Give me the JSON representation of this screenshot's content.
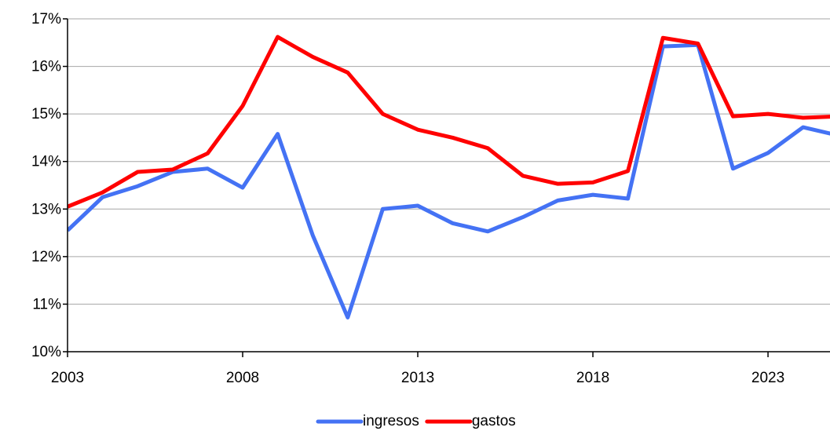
{
  "chart_data": {
    "type": "line",
    "x": [
      2003,
      2004,
      2005,
      2006,
      2007,
      2008,
      2009,
      2010,
      2011,
      2012,
      2013,
      2014,
      2015,
      2016,
      2017,
      2018,
      2019,
      2020,
      2021,
      2022,
      2023,
      2024,
      2025
    ],
    "series": [
      {
        "name": "ingresos",
        "color": "#4472f4",
        "values": [
          12.55,
          13.25,
          13.48,
          13.78,
          13.85,
          13.45,
          14.58,
          12.45,
          10.72,
          13.0,
          13.07,
          12.7,
          12.53,
          12.83,
          13.18,
          13.3,
          13.22,
          16.42,
          16.45,
          13.85,
          14.18,
          14.72,
          14.55
        ]
      },
      {
        "name": "gastos",
        "color": "#ff0000",
        "values": [
          13.05,
          13.35,
          13.78,
          13.83,
          14.17,
          15.17,
          16.62,
          16.2,
          15.87,
          15.0,
          14.67,
          14.5,
          14.28,
          13.7,
          13.53,
          13.56,
          13.8,
          16.6,
          16.48,
          14.95,
          15.0,
          14.92,
          14.95
        ]
      }
    ],
    "xlim": [
      2003,
      2024.77
    ],
    "xticks": [
      2003,
      2008,
      2013,
      2018,
      2023
    ],
    "ylim": [
      10,
      17
    ],
    "yticks": [
      {
        "value": 10,
        "label": "10%"
      },
      {
        "value": 11,
        "label": "11%"
      },
      {
        "value": 12,
        "label": "12%"
      },
      {
        "value": 13,
        "label": "13%"
      },
      {
        "value": 14,
        "label": "14%"
      },
      {
        "value": 15,
        "label": "15%"
      },
      {
        "value": 16,
        "label": "16%"
      },
      {
        "value": 17,
        "label": "17%"
      }
    ],
    "grid": true,
    "legend": "bottom"
  }
}
